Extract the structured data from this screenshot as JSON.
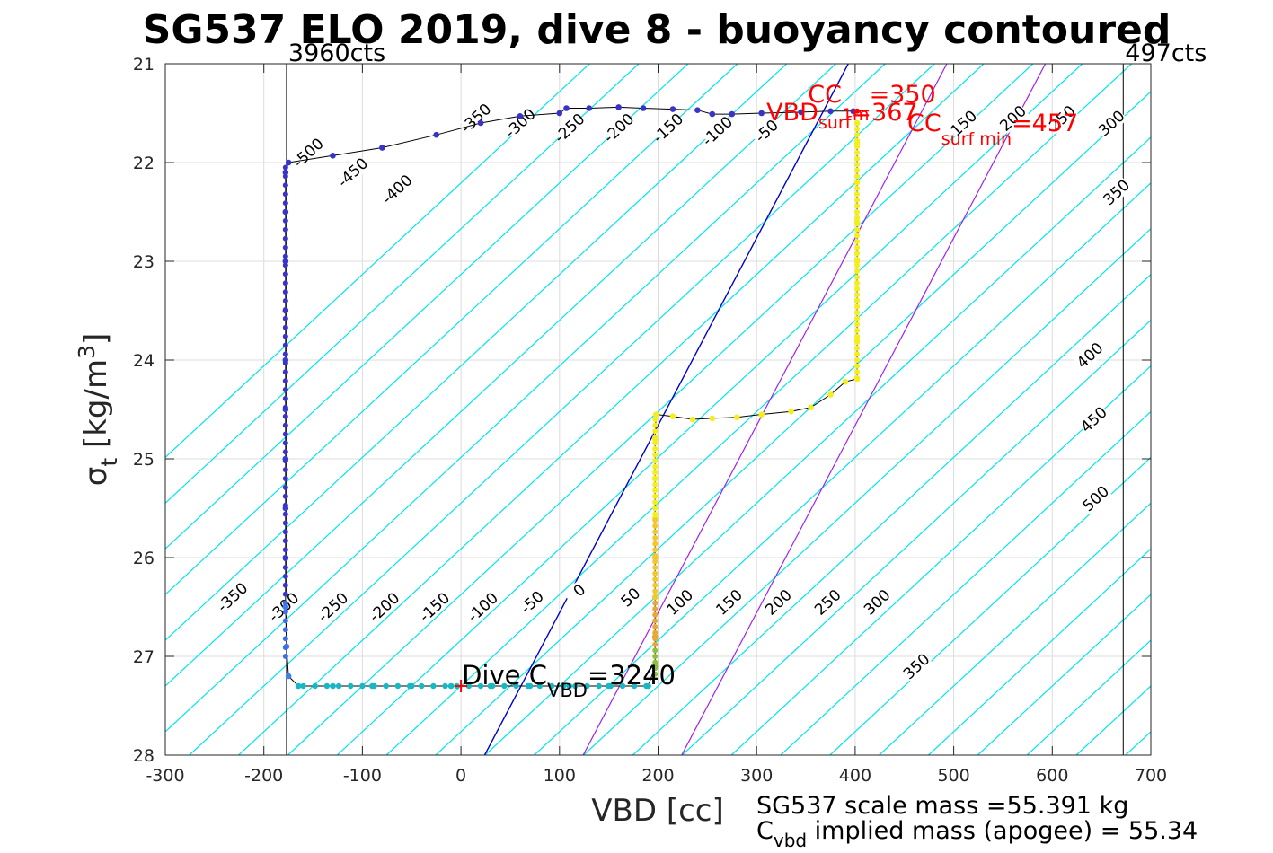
{
  "chart_data": {
    "type": "scatter",
    "title": "SG537 ELO 2019, dive 8 - buoyancy contoured",
    "xlabel": "VBD [cc]",
    "ylabel": "σt [kg/m3]",
    "ylabel_parts": {
      "sym": "σ",
      "sub": "t",
      "unit_pre": " [kg/m",
      "sup": "3",
      "unit_post": "]"
    },
    "xlim": [
      -300,
      700
    ],
    "ylim": [
      21,
      28
    ],
    "y_reversed": true,
    "grid": true,
    "xticks": [
      -300,
      -200,
      -100,
      0,
      100,
      200,
      300,
      400,
      500,
      600,
      700
    ],
    "xtick_labels": [
      "-300",
      "-200",
      "-100",
      "0",
      "100",
      "200",
      "300",
      "400",
      "500",
      "600",
      "700"
    ],
    "yticks": [
      21,
      22,
      23,
      24,
      25,
      26,
      27,
      28
    ],
    "ytick_labels": [
      "21",
      "22",
      "23",
      "24",
      "25",
      "26",
      "27",
      "28"
    ],
    "vbd_limits": {
      "min": {
        "x": -177,
        "label": "3960cts"
      },
      "max": {
        "x": 672,
        "label": "497cts"
      }
    },
    "buoyancy_contours": {
      "slope_cc_per_sigma": 108,
      "ref_sigma": 27.3,
      "levels": [
        -550,
        -500,
        -450,
        -400,
        -350,
        -300,
        -250,
        -200,
        -150,
        -100,
        -50,
        0,
        50,
        100,
        150,
        200,
        250,
        300,
        350,
        400,
        450,
        500,
        550,
        600,
        650,
        700,
        750,
        800,
        850,
        900,
        950,
        1000,
        1050
      ],
      "color": "#00e5ee",
      "top_labels": [
        {
          "text": "-500",
          "x": -155,
          "y": 21.9
        },
        {
          "text": "-450",
          "x": -110,
          "y": 22.1
        },
        {
          "text": "-400",
          "x": -65,
          "y": 22.27
        },
        {
          "text": "-350",
          "x": 15,
          "y": 21.55
        },
        {
          "text": "-300",
          "x": 60,
          "y": 21.6
        },
        {
          "text": "-250",
          "x": 110,
          "y": 21.65
        },
        {
          "text": "-200",
          "x": 160,
          "y": 21.65
        },
        {
          "text": "-150",
          "x": 210,
          "y": 21.65
        },
        {
          "text": "-100",
          "x": 260,
          "y": 21.68
        },
        {
          "text": "-50",
          "x": 310,
          "y": 21.68
        },
        {
          "text": "150",
          "x": 510,
          "y": 21.6
        },
        {
          "text": "200",
          "x": 560,
          "y": 21.55
        },
        {
          "text": "250",
          "x": 610,
          "y": 21.55
        },
        {
          "text": "300",
          "x": 660,
          "y": 21.6
        },
        {
          "text": "350",
          "x": 665,
          "y": 22.3
        }
      ],
      "right_labels": [
        {
          "text": "400",
          "x": 638,
          "y": 23.95
        },
        {
          "text": "450",
          "x": 642,
          "y": 24.6
        },
        {
          "text": "500",
          "x": 644,
          "y": 25.4
        }
      ],
      "bottom_labels": [
        {
          "text": "-350",
          "x": -232,
          "y": 26.4
        },
        {
          "text": "-300",
          "x": -180,
          "y": 26.5
        },
        {
          "text": "-250",
          "x": -130,
          "y": 26.5
        },
        {
          "text": "-200",
          "x": -78,
          "y": 26.5
        },
        {
          "text": "-150",
          "x": -27,
          "y": 26.5
        },
        {
          "text": "-100",
          "x": 22,
          "y": 26.5
        },
        {
          "text": "-50",
          "x": 72,
          "y": 26.45
        },
        {
          "text": "0",
          "x": 120,
          "y": 26.33
        },
        {
          "text": "50",
          "x": 172,
          "y": 26.4
        },
        {
          "text": "100",
          "x": 222,
          "y": 26.45
        },
        {
          "text": "150",
          "x": 272,
          "y": 26.45
        },
        {
          "text": "200",
          "x": 322,
          "y": 26.45
        },
        {
          "text": "250",
          "x": 372,
          "y": 26.45
        },
        {
          "text": "300",
          "x": 422,
          "y": 26.45
        },
        {
          "text": "350",
          "x": 462,
          "y": 27.1
        }
      ]
    },
    "zero_line": {
      "color": "#0000cd",
      "x_at_bottom": 24,
      "x_at_top": 393
    },
    "magenta_lines": [
      {
        "color": "#a020f0",
        "x_at_bottom": 124,
        "x_at_top": 493
      },
      {
        "color": "#a020f0",
        "x_at_bottom": 224,
        "x_at_top": 593
      }
    ],
    "dive_points": [
      {
        "x": -175,
        "y": 22.0
      },
      {
        "x": -130,
        "y": 21.93
      },
      {
        "x": -80,
        "y": 21.85
      },
      {
        "x": -25,
        "y": 21.72
      },
      {
        "x": 20,
        "y": 21.6
      },
      {
        "x": 60,
        "y": 21.53
      },
      {
        "x": 100,
        "y": 21.5
      },
      {
        "x": 107,
        "y": 21.45
      },
      {
        "x": 130,
        "y": 21.45
      },
      {
        "x": 160,
        "y": 21.44
      },
      {
        "x": 185,
        "y": 21.45
      },
      {
        "x": 215,
        "y": 21.46
      },
      {
        "x": 240,
        "y": 21.47
      },
      {
        "x": 255,
        "y": 21.51
      },
      {
        "x": 275,
        "y": 21.51
      },
      {
        "x": 305,
        "y": 21.5
      },
      {
        "x": 345,
        "y": 21.49
      },
      {
        "x": 375,
        "y": 21.48
      },
      {
        "x": 398,
        "y": 21.48
      },
      {
        "x": -178,
        "y": 22.1
      },
      {
        "x": -178,
        "y": 22.5
      },
      {
        "x": -178,
        "y": 23.0
      },
      {
        "x": -178,
        "y": 23.5
      },
      {
        "x": -178,
        "y": 24.0
      },
      {
        "x": -178,
        "y": 24.5
      },
      {
        "x": -178,
        "y": 25.0
      },
      {
        "x": -178,
        "y": 25.5
      },
      {
        "x": -178,
        "y": 26.0
      },
      {
        "x": -178,
        "y": 26.5
      },
      {
        "x": -177,
        "y": 26.9
      },
      {
        "x": -175,
        "y": 27.2
      },
      {
        "x": -165,
        "y": 27.3
      },
      {
        "x": -130,
        "y": 27.3
      },
      {
        "x": -90,
        "y": 27.3
      },
      {
        "x": -50,
        "y": 27.3
      },
      {
        "x": -10,
        "y": 27.3
      },
      {
        "x": 30,
        "y": 27.3
      },
      {
        "x": 70,
        "y": 27.3
      },
      {
        "x": 110,
        "y": 27.3
      },
      {
        "x": 150,
        "y": 27.3
      },
      {
        "x": 190,
        "y": 27.3
      }
    ],
    "climb_points": [
      {
        "x": 197,
        "y": 27.1
      },
      {
        "x": 197,
        "y": 26.8
      },
      {
        "x": 197,
        "y": 26.4
      },
      {
        "x": 197,
        "y": 26.0
      },
      {
        "x": 197,
        "y": 25.6
      },
      {
        "x": 197,
        "y": 25.2
      },
      {
        "x": 197,
        "y": 24.8
      },
      {
        "x": 198,
        "y": 24.55
      },
      {
        "x": 215,
        "y": 24.57
      },
      {
        "x": 235,
        "y": 24.6
      },
      {
        "x": 255,
        "y": 24.59
      },
      {
        "x": 280,
        "y": 24.58
      },
      {
        "x": 305,
        "y": 24.55
      },
      {
        "x": 335,
        "y": 24.52
      },
      {
        "x": 355,
        "y": 24.48
      },
      {
        "x": 375,
        "y": 24.35
      },
      {
        "x": 390,
        "y": 24.22
      },
      {
        "x": 402,
        "y": 24.19
      },
      {
        "x": 402,
        "y": 23.8
      },
      {
        "x": 402,
        "y": 23.4
      },
      {
        "x": 402,
        "y": 23.0
      },
      {
        "x": 402,
        "y": 22.6
      },
      {
        "x": 402,
        "y": 22.2
      },
      {
        "x": 402,
        "y": 21.8
      },
      {
        "x": 402,
        "y": 21.6
      }
    ],
    "annotations": {
      "cc": {
        "main": "CC",
        "sub": "1m",
        "value": "=350"
      },
      "vbd_surf": {
        "main": "VBD",
        "sub": "surf",
        "value": "=367"
      },
      "cc_surf_min": {
        "main": "CC",
        "sub": "surf min",
        "value": "=457"
      },
      "dive_c": {
        "main": "Dive C",
        "sub": "VBD",
        "value": "=3240",
        "x": 0,
        "y": 27.3
      }
    },
    "footer": {
      "scale_mass": "SG537 scale mass =55.391 kg",
      "cvbd_main": "C",
      "cvbd_sub": "vbd",
      "cvbd_rest": " implied mass (apogee) = 55.34"
    }
  }
}
